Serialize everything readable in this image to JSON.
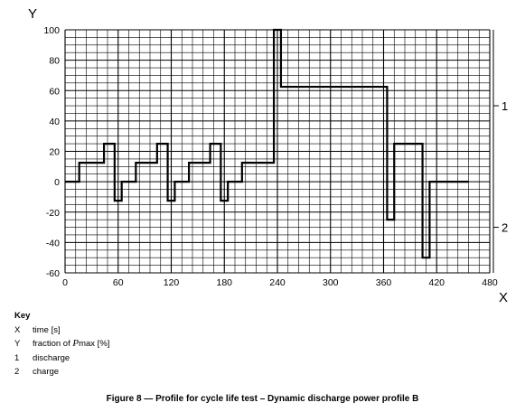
{
  "chart_data": {
    "type": "line",
    "xlabel": "X",
    "ylabel": "Y",
    "xlim": [
      0,
      480
    ],
    "ylim": [
      -60,
      100
    ],
    "grid": true,
    "x_ticks": [
      "0",
      "60",
      "120",
      "180",
      "240",
      "300",
      "360",
      "420",
      "480"
    ],
    "y_ticks": [
      "100",
      "80",
      "60",
      "40",
      "20",
      "0",
      "-20",
      "-40",
      "-60"
    ],
    "series": [
      {
        "x": [
          0,
          16,
          16,
          44,
          44,
          56,
          56,
          64,
          64,
          80,
          80,
          104,
          104,
          116,
          116,
          124,
          124,
          140,
          140,
          164,
          164,
          176,
          176,
          184,
          184,
          200,
          200,
          236,
          236,
          244,
          244,
          364,
          364,
          372,
          372,
          404,
          404,
          412,
          412,
          456
        ],
        "y": [
          0,
          0,
          12.5,
          12.5,
          25,
          25,
          -12.5,
          -12.5,
          0,
          0,
          12.5,
          12.5,
          25,
          25,
          -12.5,
          -12.5,
          0,
          0,
          12.5,
          12.5,
          25,
          25,
          -12.5,
          -12.5,
          0,
          0,
          12.5,
          12.5,
          100,
          100,
          62.5,
          62.5,
          -25,
          -25,
          25,
          25,
          -50,
          -50,
          0,
          0
        ]
      }
    ],
    "regions": [
      {
        "label": "1",
        "y_from": 0,
        "y_to": 100
      },
      {
        "label": "2",
        "y_from": -60,
        "y_to": 0
      }
    ]
  },
  "key": {
    "title": "Key",
    "items": [
      {
        "symbol": "X",
        "text": "time [s]"
      },
      {
        "symbol": "Y",
        "pre": "fraction of ",
        "var": "P",
        "sub": "max",
        "post": " [%]"
      },
      {
        "symbol": "1",
        "text": "discharge"
      },
      {
        "symbol": "2",
        "text": "charge"
      }
    ]
  },
  "caption": "Figure 8 — Profile for cycle life test – Dynamic discharge power profile B"
}
